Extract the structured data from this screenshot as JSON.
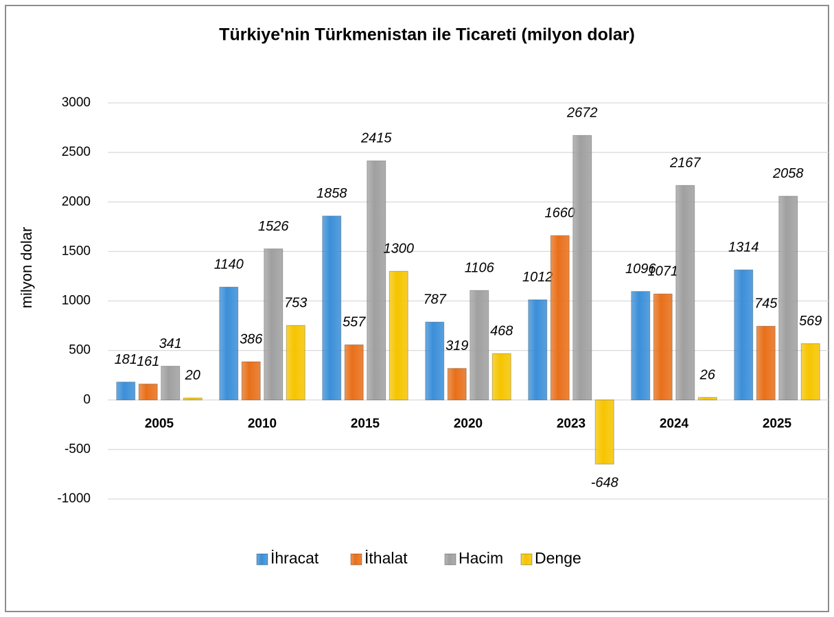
{
  "chart_data": {
    "type": "bar",
    "title": "Türkiye'nin Türkmenistan ile Ticareti (milyon dolar)",
    "y_label": "milyon dolar",
    "categories": [
      "2005",
      "2010",
      "2015",
      "2020",
      "2023",
      "2024",
      "2025"
    ],
    "series": [
      {
        "name": "İhracat",
        "color": "#3b8fd8",
        "values": [
          181,
          1140,
          1858,
          787,
          1012,
          1096,
          1314
        ]
      },
      {
        "name": "İthalat",
        "color": "#e8701a",
        "values": [
          161,
          386,
          557,
          319,
          1660,
          1071,
          745
        ]
      },
      {
        "name": "Hacim",
        "color": "#a0a0a0",
        "values": [
          341,
          1526,
          2415,
          1106,
          2672,
          2167,
          2058
        ]
      },
      {
        "name": "Denge",
        "color": "#f6c500",
        "values": [
          20,
          753,
          1300,
          468,
          -648,
          26,
          569
        ]
      }
    ],
    "ylim": [
      -1000,
      3000
    ],
    "yticks": [
      -1000,
      -500,
      0,
      500,
      1000,
      1500,
      2000,
      2500,
      3000
    ],
    "grid": true,
    "legend": "bottom"
  }
}
